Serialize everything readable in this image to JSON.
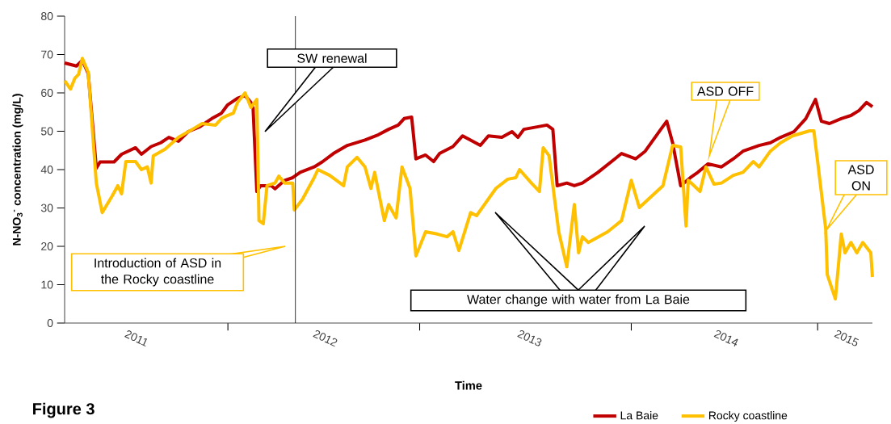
{
  "chart_data": {
    "type": "line",
    "xlabel": "Time",
    "ylabel": "N-NO$_{3}$$^{-}$ concentration (mg/L)",
    "xlim": [
      "2011-02-28",
      "2015-04-13"
    ],
    "ylim": [
      0,
      80
    ],
    "yticks": [
      0,
      10,
      20,
      30,
      40,
      50,
      60,
      70,
      80
    ],
    "xticks": [
      {
        "value": "2011-07-12",
        "label": "2011"
      },
      {
        "value": "2011-12-29",
        "label": null
      },
      {
        "value": "2012-06-28",
        "label": "2012"
      },
      {
        "value": "2012-12-21",
        "label": null
      },
      {
        "value": "2013-07-14",
        "label": "2013"
      },
      {
        "value": "2014-01-19",
        "label": null
      },
      {
        "value": "2014-07-15",
        "label": "2014"
      },
      {
        "value": "2015-01-01",
        "label": null
      },
      {
        "value": "2015-02-24",
        "label": "2015"
      }
    ],
    "legend": "bottom right",
    "line_style": "solid",
    "series": [
      {
        "name": "La Baie",
        "color": "#c00000",
        "x": [
          "2011-02-28",
          "2011-03-22",
          "2011-04-02",
          "2011-04-13",
          "2011-04-28",
          "2011-05-05",
          "2011-05-31",
          "2011-06-14",
          "2011-07-10",
          "2011-07-21",
          "2011-08-08",
          "2011-08-26",
          "2011-09-10",
          "2011-09-28",
          "2011-10-16",
          "2011-11-07",
          "2011-11-29",
          "2011-12-17",
          "2011-12-28",
          "2012-01-16",
          "2012-01-30",
          "2012-02-10",
          "2012-02-14",
          "2012-02-21",
          "2012-02-28",
          "2012-03-19",
          "2012-03-26",
          "2012-04-13",
          "2012-04-28",
          "2012-05-12",
          "2012-06-07",
          "2012-06-22",
          "2012-07-13",
          "2012-08-08",
          "2012-09-10",
          "2012-10-05",
          "2012-10-24",
          "2012-11-11",
          "2012-11-22",
          "2012-12-06",
          "2012-12-14",
          "2013-01-01",
          "2013-01-16",
          "2013-01-27",
          "2013-02-21",
          "2013-03-11",
          "2013-04-13",
          "2013-04-28",
          "2013-05-23",
          "2013-06-11",
          "2013-06-22",
          "2013-07-03",
          "2013-08-15",
          "2013-08-26",
          "2013-09-03",
          "2013-09-21",
          "2013-10-05",
          "2013-10-20",
          "2013-11-18",
          "2014-01-01",
          "2014-01-27",
          "2014-02-14",
          "2014-03-15",
          "2014-03-26",
          "2014-04-06",
          "2014-04-21",
          "2014-05-09",
          "2014-05-23",
          "2014-06-11",
          "2014-07-06",
          "2014-07-28",
          "2014-08-15",
          "2014-09-14",
          "2014-10-05",
          "2014-10-24",
          "2014-11-18",
          "2014-12-10",
          "2014-12-28",
          "2015-01-08",
          "2015-01-23",
          "2015-02-14",
          "2015-03-04",
          "2015-03-19",
          "2015-04-02",
          "2015-04-13"
        ],
        "values": [
          67.8,
          67,
          68.5,
          65,
          40.4,
          42,
          42,
          44,
          45.7,
          44,
          46,
          47,
          48.4,
          47.4,
          49.9,
          51.2,
          53.3,
          54.7,
          56.8,
          58.6,
          59.3,
          57.5,
          56,
          34.3,
          35.8,
          35.8,
          35,
          37.2,
          37.9,
          39.3,
          40.7,
          42,
          44.2,
          46.3,
          47.7,
          49.1,
          50.5,
          51.6,
          53.3,
          53.7,
          42.8,
          43.8,
          42.1,
          44.2,
          46,
          48.8,
          46.3,
          48.8,
          48.4,
          49.9,
          48.4,
          50.5,
          51.6,
          50.5,
          35.8,
          36.5,
          35.8,
          36.5,
          39.3,
          44.2,
          42.8,
          44.8,
          50.5,
          52.6,
          47,
          35.8,
          37.9,
          39.3,
          41.5,
          40.7,
          42.8,
          44.8,
          46.3,
          47,
          48.4,
          49.9,
          53.3,
          58.3,
          52.6,
          52,
          53.3,
          54.1,
          55.4,
          57.5,
          56.4
        ]
      },
      {
        "name": "Rocky coastline",
        "color": "#ffc000",
        "x": [
          "2011-02-28",
          "2011-03-11",
          "2011-03-19",
          "2011-03-26",
          "2011-04-02",
          "2011-04-13",
          "2011-04-28",
          "2011-05-09",
          "2011-05-27",
          "2011-06-07",
          "2011-06-14",
          "2011-06-22",
          "2011-07-10",
          "2011-07-21",
          "2011-08-01",
          "2011-08-08",
          "2011-08-12",
          "2011-09-03",
          "2011-09-28",
          "2011-10-24",
          "2011-11-11",
          "2011-12-06",
          "2011-12-17",
          "2011-12-28",
          "2012-01-08",
          "2012-01-16",
          "2012-01-30",
          "2012-02-10",
          "2012-02-21",
          "2012-02-25",
          "2012-03-04",
          "2012-03-11",
          "2012-03-26",
          "2012-04-02",
          "2012-04-13",
          "2012-04-28",
          "2012-05-01",
          "2012-05-16",
          "2012-06-07",
          "2012-06-14",
          "2012-07-06",
          "2012-08-01",
          "2012-08-08",
          "2012-08-26",
          "2012-09-10",
          "2012-09-21",
          "2012-09-28",
          "2012-10-16",
          "2012-10-24",
          "2012-11-07",
          "2012-11-18",
          "2012-12-03",
          "2012-12-14",
          "2013-01-01",
          "2013-01-23",
          "2013-02-10",
          "2013-02-21",
          "2013-03-04",
          "2013-03-26",
          "2013-04-06",
          "2013-05-12",
          "2013-06-03",
          "2013-06-18",
          "2013-06-25",
          "2013-07-17",
          "2013-08-01",
          "2013-08-08",
          "2013-08-19",
          "2013-09-06",
          "2013-09-21",
          "2013-10-05",
          "2013-10-13",
          "2013-10-20",
          "2013-10-31",
          "2013-12-06",
          "2014-01-01",
          "2014-01-19",
          "2014-02-03",
          "2014-03-19",
          "2014-04-06",
          "2014-04-21",
          "2014-05-01",
          "2014-05-05",
          "2014-05-16",
          "2014-05-27",
          "2014-06-07",
          "2014-06-22",
          "2014-07-06",
          "2014-07-28",
          "2014-08-15",
          "2014-09-03",
          "2014-09-14",
          "2014-10-05",
          "2014-10-24",
          "2014-11-15",
          "2014-12-17",
          "2014-12-25",
          "2015-01-01",
          "2015-01-16",
          "2015-01-19",
          "2015-02-03",
          "2015-02-14",
          "2015-02-21",
          "2015-03-04",
          "2015-03-15",
          "2015-03-26",
          "2015-04-10",
          "2015-04-13"
        ],
        "values": [
          63.2,
          61,
          63.8,
          64.8,
          69,
          65.3,
          36.5,
          28.8,
          33,
          35.8,
          33.7,
          42.1,
          42.1,
          40,
          40.7,
          36.5,
          43.6,
          45.3,
          48.4,
          50.5,
          52,
          51.6,
          53.3,
          54.1,
          54.7,
          57.5,
          60,
          56.2,
          58.3,
          26.7,
          25.9,
          35.8,
          36.5,
          38.3,
          36.5,
          36.5,
          29.5,
          32.2,
          37.9,
          40,
          38.5,
          35.8,
          40.7,
          43.2,
          40.7,
          35.1,
          39.3,
          26.7,
          30.9,
          27.4,
          40.7,
          35.1,
          17.5,
          23.8,
          23.2,
          22.5,
          23.8,
          18.9,
          28.8,
          28,
          35.1,
          37.5,
          37.9,
          40,
          36.5,
          34.3,
          45.7,
          43.6,
          23.8,
          14.7,
          30.9,
          18.3,
          22.5,
          21,
          23.8,
          26.7,
          37.2,
          30.1,
          35.8,
          46.3,
          45.9,
          25.3,
          37.2,
          35.8,
          34.3,
          40.7,
          36.2,
          36.5,
          38.5,
          39.3,
          42.1,
          40.7,
          44.8,
          47,
          48.8,
          50.1,
          50.1,
          42.1,
          24.6,
          12.6,
          6.3,
          23.2,
          18.3,
          21,
          18.3,
          21,
          18.3,
          12
        ]
      }
    ],
    "ref_lines": [
      {
        "axis": "x",
        "value": "2012-05-03",
        "color": "#000000"
      }
    ],
    "annotations": [
      "SW renewal",
      "Introduction of ASD in the Rocky coastline",
      "ASD OFF",
      "ASD ON",
      "Water change with water from La Baie",
      "Figure 3"
    ]
  }
}
